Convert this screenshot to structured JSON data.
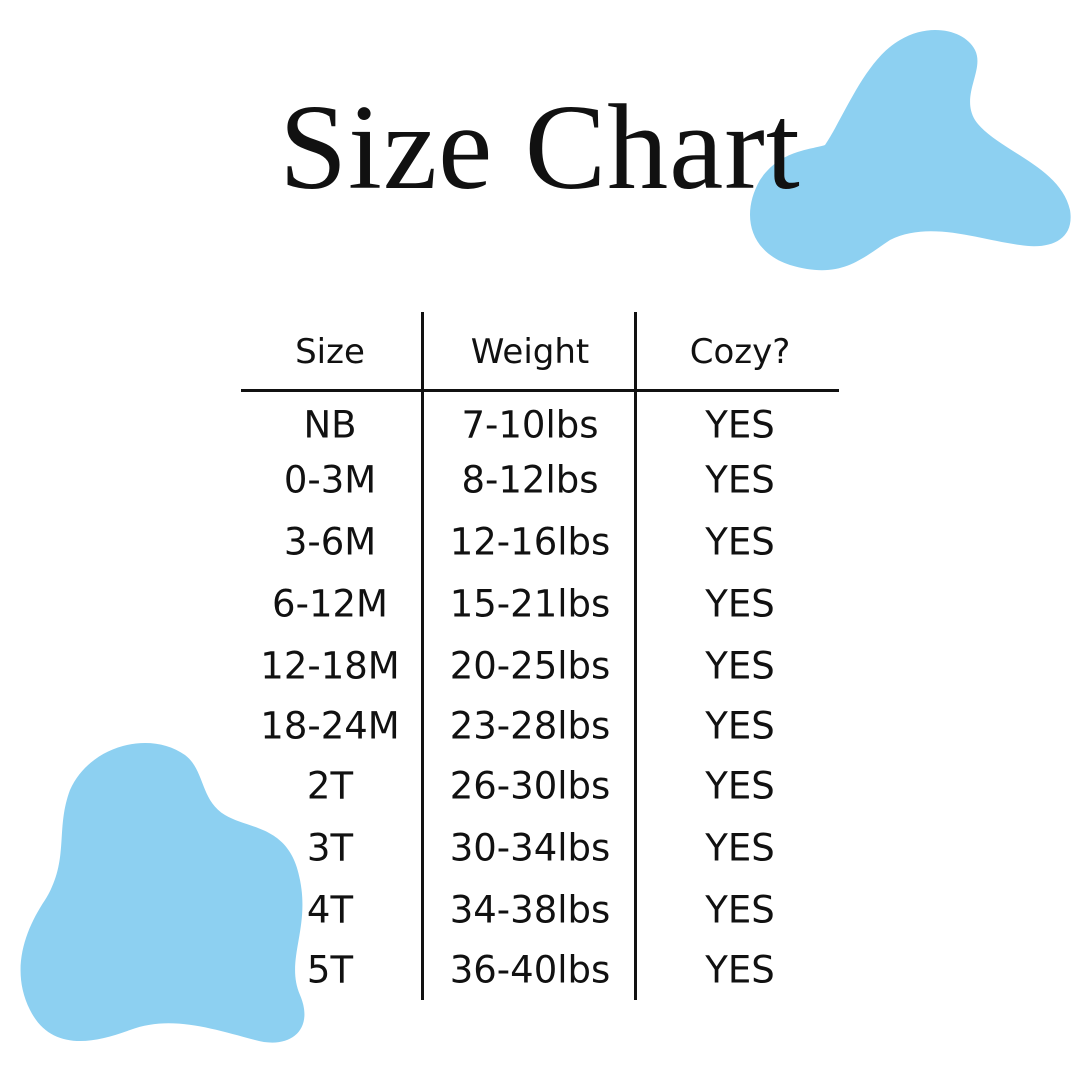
{
  "title": "Size Chart",
  "colors": {
    "blob": "#8dd0f1",
    "text": "#111111"
  },
  "table": {
    "headers": [
      "Size",
      "Weight",
      "Cozy?"
    ],
    "rows": [
      [
        "NB",
        "7-10lbs",
        "YES"
      ],
      [
        "0-3M",
        "8-12lbs",
        "YES"
      ],
      [
        "3-6M",
        "12-16lbs",
        "YES"
      ],
      [
        "6-12M",
        "15-21lbs",
        "YES"
      ],
      [
        "12-18M",
        "20-25lbs",
        "YES"
      ],
      [
        "18-24M",
        "23-28lbs",
        "YES"
      ],
      [
        "2T",
        "26-30lbs",
        "YES"
      ],
      [
        "3T",
        "30-34lbs",
        "YES"
      ],
      [
        "4T",
        "34-38lbs",
        "YES"
      ],
      [
        "5T",
        "36-40lbs",
        "YES"
      ]
    ]
  }
}
